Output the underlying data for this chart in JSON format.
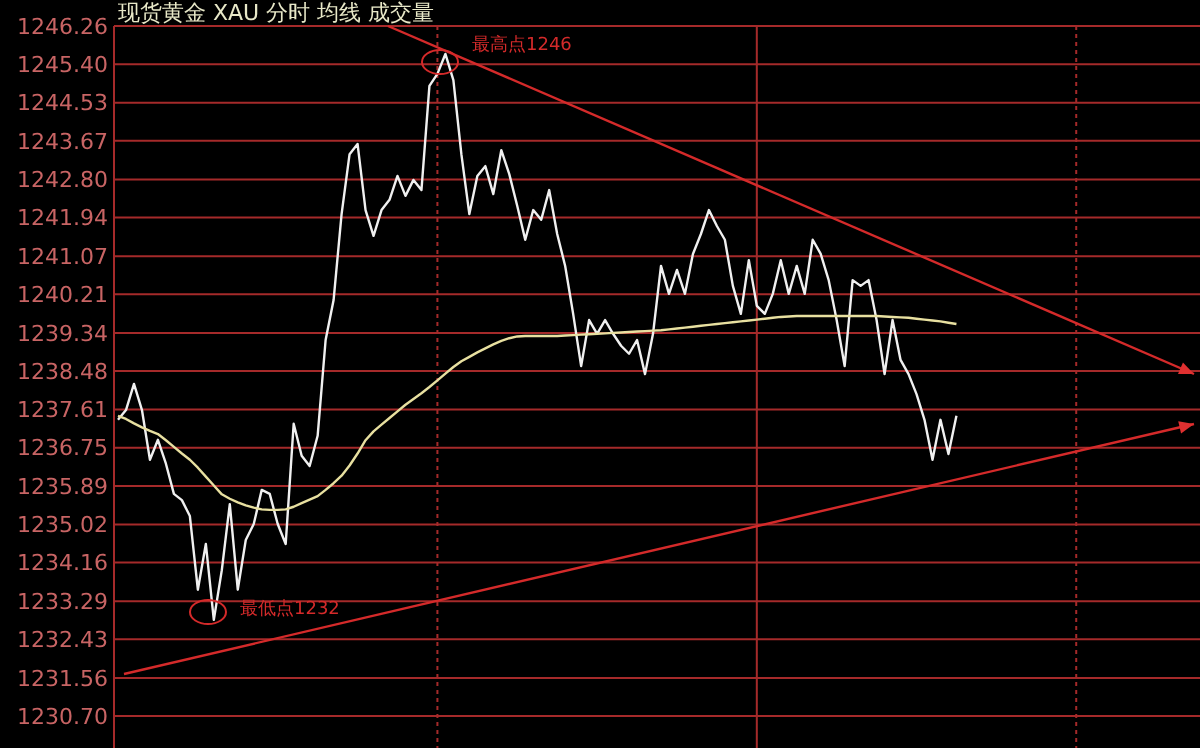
{
  "chart_data": {
    "type": "line",
    "title": "现货黄金 XAU 分时 均线 成交量",
    "categories": [
      null,
      null,
      null,
      null,
      null,
      null,
      null,
      null,
      null,
      null,
      null,
      null,
      null,
      null,
      null,
      null,
      null,
      null,
      null,
      null,
      null,
      null,
      null,
      null,
      null,
      null,
      null,
      null,
      null,
      null,
      null,
      null,
      null,
      null,
      null,
      null,
      null,
      null,
      null,
      null,
      null,
      null,
      null,
      null,
      null,
      null,
      null,
      null,
      null,
      null,
      null,
      null,
      null,
      null,
      null,
      null,
      null,
      null,
      null,
      null,
      null,
      null,
      null,
      null,
      null,
      null,
      null,
      null,
      null,
      null,
      null,
      null,
      null,
      null,
      null,
      null,
      null,
      null,
      null,
      null,
      null,
      null,
      null,
      null,
      null,
      null,
      null,
      null,
      null,
      null,
      null,
      null,
      null,
      null,
      null,
      null,
      null,
      null,
      null,
      null,
      null,
      null,
      null,
      null,
      null,
      null,
      null,
      null,
      null,
      null,
      null,
      null,
      null,
      null,
      null,
      null,
      null,
      null,
      null,
      null,
      null,
      null,
      null,
      null,
      null,
      null,
      null,
      null,
      null,
      null,
      null,
      null,
      null,
      null,
      null,
      null
    ],
    "ylim": [
      1229.98,
      1246.26
    ],
    "yticks": [
      1246.26,
      {
        "value": 1245.4,
        "label": "1245.40"
      },
      1244.53,
      1243.67,
      {
        "value": 1242.8,
        "label": "1242.80"
      },
      1241.94,
      1241.07,
      1240.21,
      1239.34,
      1238.48,
      1237.61,
      1236.75,
      1235.89,
      1235.02,
      1234.16,
      1233.29,
      1232.43,
      1231.56,
      {
        "value": 1230.7,
        "label": "1230.70"
      }
    ],
    "tick_labels": "y",
    "grid": true,
    "series": [
      {
        "color": "#f0f0f0",
        "values": [
          1237.38,
          1237.6,
          1238.19,
          1237.6,
          1236.48,
          1236.93,
          1236.39,
          1235.71,
          1235.57,
          1235.21,
          1233.55,
          1234.58,
          1232.87,
          1233.99,
          1235.48,
          1233.55,
          1234.67,
          1235.03,
          1235.8,
          1235.71,
          1235.03,
          1234.58,
          1237.29,
          1236.57,
          1236.34,
          1237.02,
          1239.18,
          1240.08,
          1242.02,
          1243.37,
          1243.6,
          1242.11,
          1241.53,
          1242.11,
          1242.34,
          1242.88,
          1242.43,
          1242.79,
          1242.56,
          1244.91,
          1245.18,
          1245.63,
          1245.04,
          1243.37,
          1242.02,
          1242.88,
          1243.1,
          1242.47,
          1243.46,
          1242.92,
          1242.2,
          1241.44,
          1242.11,
          1241.89,
          1242.56,
          1241.57,
          1240.85,
          1239.77,
          1238.59,
          1239.63,
          1239.32,
          1239.63,
          1239.32,
          1239.05,
          1238.87,
          1239.18,
          1238.41,
          1239.32,
          1240.85,
          1240.22,
          1240.76,
          1240.22,
          1241.12,
          1241.57,
          1242.11,
          1241.75,
          1241.44,
          1240.4,
          1239.77,
          1240.98,
          1239.95,
          1239.77,
          1240.22,
          1240.98,
          1240.22,
          1240.85,
          1240.22,
          1241.44,
          1241.12,
          1240.53,
          1239.63,
          1238.59,
          1240.53,
          1240.4,
          1240.53,
          1239.63,
          1238.41,
          1239.63,
          1238.73,
          1238.41,
          1237.96,
          1237.38,
          1236.48,
          1237.38,
          1236.61,
          1237.47,
          null,
          null,
          null,
          null,
          null,
          null,
          null,
          null,
          null,
          null,
          null,
          null,
          null,
          null,
          null,
          null,
          null,
          null,
          null,
          null,
          null,
          null,
          null,
          null,
          null,
          null,
          null,
          null,
          null,
          null
        ]
      },
      {
        "color": "#e8e0a0",
        "values": [
          1237.47,
          1237.4,
          1237.3,
          1237.21,
          1237.13,
          1237.06,
          1236.92,
          1236.77,
          1236.62,
          1236.48,
          1236.3,
          1236.1,
          1235.9,
          1235.7,
          1235.6,
          1235.52,
          1235.45,
          1235.4,
          1235.36,
          1235.35,
          1235.35,
          1235.36,
          1235.42,
          1235.5,
          1235.58,
          1235.66,
          1235.8,
          1235.95,
          1236.12,
          1236.35,
          1236.62,
          1236.92,
          1237.12,
          1237.27,
          1237.42,
          1237.57,
          1237.72,
          1237.85,
          1237.98,
          1238.12,
          1238.27,
          1238.42,
          1238.57,
          1238.7,
          1238.8,
          1238.9,
          1238.99,
          1239.08,
          1239.16,
          1239.22,
          1239.26,
          1239.27,
          1239.27,
          1239.27,
          1239.27,
          1239.27,
          1239.28,
          1239.29,
          1239.3,
          1239.31,
          1239.32,
          1239.33,
          1239.34,
          1239.35,
          1239.36,
          1239.37,
          1239.38,
          1239.39,
          1239.4,
          1239.42,
          1239.44,
          1239.46,
          1239.48,
          1239.5,
          1239.52,
          1239.54,
          1239.56,
          1239.58,
          1239.6,
          1239.62,
          1239.64,
          1239.66,
          1239.68,
          1239.7,
          1239.71,
          1239.72,
          1239.72,
          1239.72,
          1239.72,
          1239.72,
          1239.72,
          1239.72,
          1239.72,
          1239.72,
          1239.72,
          1239.72,
          1239.71,
          1239.7,
          1239.69,
          1239.68,
          1239.66,
          1239.64,
          1239.62,
          1239.6,
          1239.57,
          1239.54,
          null,
          null,
          null,
          null,
          null,
          null,
          null,
          null,
          null,
          null,
          null,
          null,
          null,
          null,
          null,
          null,
          null,
          null,
          null,
          null,
          null,
          null,
          null,
          null,
          null,
          null,
          null,
          null,
          null,
          null
        ]
      }
    ],
    "annotations": [
      "最高点1246",
      "最低点1232"
    ]
  }
}
